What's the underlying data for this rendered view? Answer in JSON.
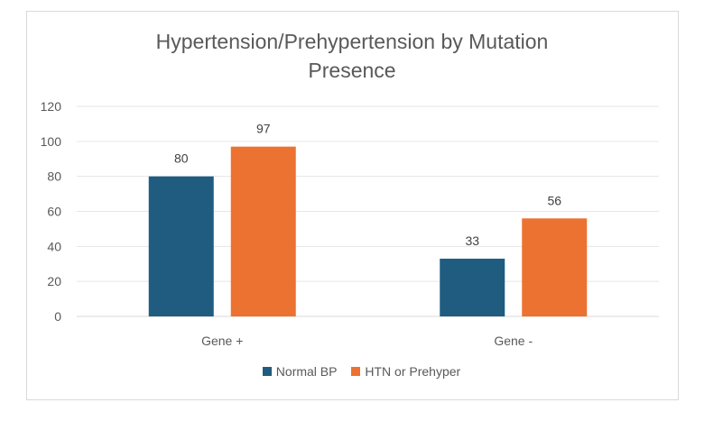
{
  "chart_data": {
    "type": "bar",
    "title_line1": "Hypertension/Prehypertension by Mutation",
    "title_line2": "Presence",
    "categories": [
      "Gene +",
      "Gene -"
    ],
    "series": [
      {
        "name": "Normal BP",
        "values": [
          80,
          33
        ],
        "color": "#1f5c80"
      },
      {
        "name": "HTN or Prehyper",
        "values": [
          97,
          56
        ],
        "color": "#ec7232"
      }
    ],
    "ylim": [
      0,
      120
    ],
    "yticks": [
      "0",
      "20",
      "40",
      "60",
      "80",
      "100",
      "120"
    ],
    "grid": true,
    "legend_position": "bottom"
  }
}
